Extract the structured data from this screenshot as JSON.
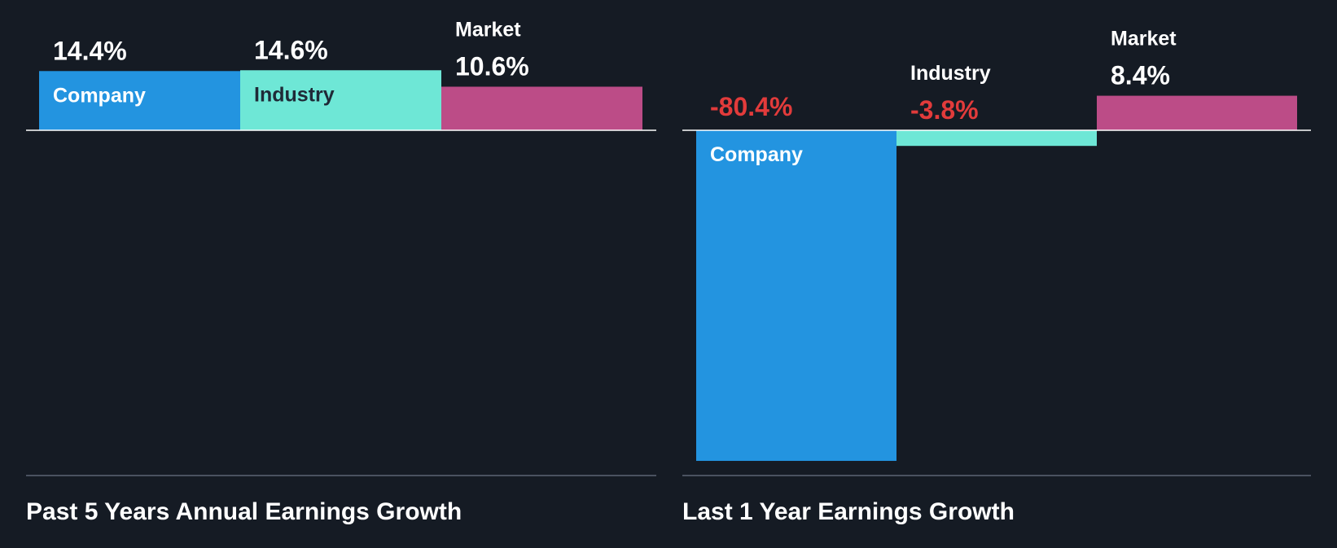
{
  "colors": {
    "background": "#151b24",
    "company": "#2394e0",
    "industry": "#6ee7d6",
    "market": "#bc4c87",
    "negative_text": "#e23b3b",
    "positive_text": "#ffffff",
    "baseline": "#ffffff",
    "bottom_rule": "#4a5260"
  },
  "chart_data": [
    {
      "type": "bar",
      "title": "Past 5 Years Annual Earnings Growth",
      "categories": [
        "Company",
        "Industry",
        "Market"
      ],
      "values": [
        14.4,
        14.6,
        10.6
      ],
      "value_labels": [
        "14.4%",
        "14.6%",
        "10.6%"
      ],
      "units": "%",
      "grid": false,
      "legend": "none"
    },
    {
      "type": "bar",
      "title": "Last 1 Year Earnings Growth",
      "categories": [
        "Company",
        "Industry",
        "Market"
      ],
      "values": [
        -80.4,
        -3.8,
        8.4
      ],
      "value_labels": [
        "-80.4%",
        "-3.8%",
        "8.4%"
      ],
      "units": "%",
      "grid": false,
      "legend": "none"
    }
  ]
}
